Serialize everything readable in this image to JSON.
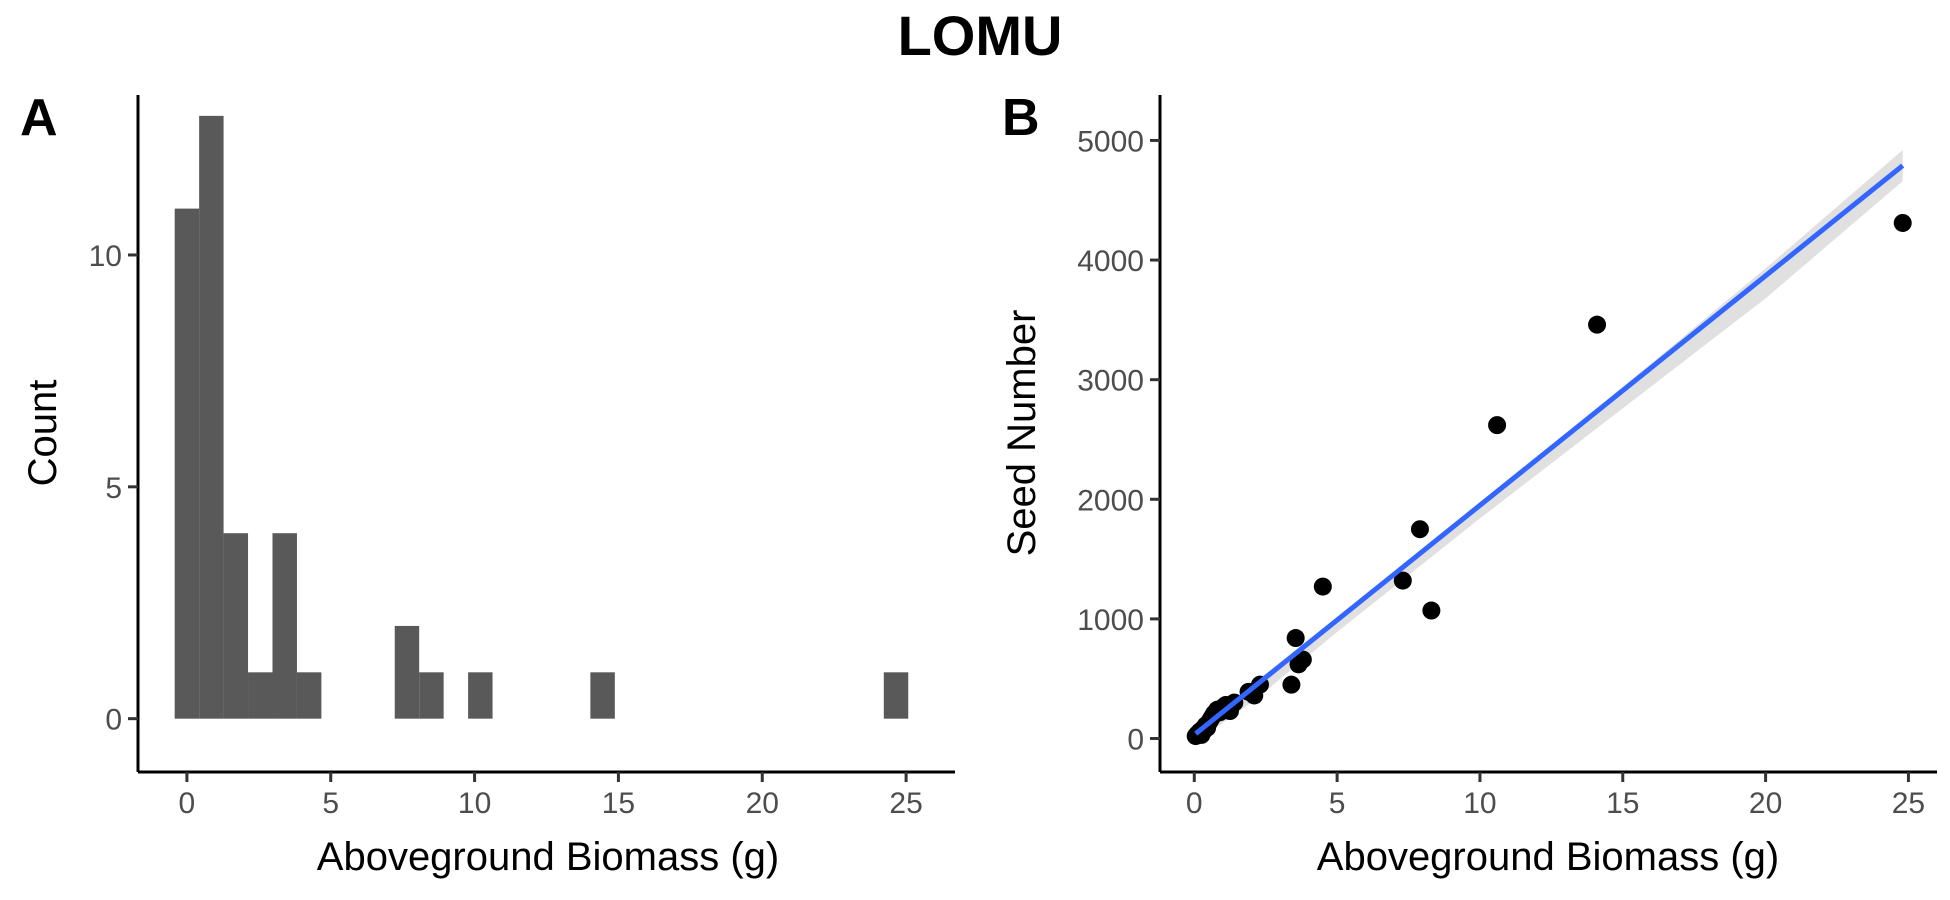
{
  "title": "LOMU",
  "chart_data": [
    {
      "panel": "A",
      "type": "bar",
      "xlabel": "Aboveground Biomass (g)",
      "ylabel": "Count",
      "xlim": [
        -1.7,
        26.7
      ],
      "ylim": [
        -1.15,
        13.45
      ],
      "xticks": [
        0,
        5,
        10,
        15,
        20,
        25
      ],
      "yticks": [
        0,
        5,
        10
      ],
      "bin_width": 0.85,
      "bins": [
        {
          "center": 0.0,
          "count": 11
        },
        {
          "center": 0.85,
          "count": 13
        },
        {
          "center": 1.7,
          "count": 4
        },
        {
          "center": 2.55,
          "count": 1
        },
        {
          "center": 3.4,
          "count": 4
        },
        {
          "center": 4.25,
          "count": 1
        },
        {
          "center": 7.65,
          "count": 2
        },
        {
          "center": 8.5,
          "count": 1
        },
        {
          "center": 10.2,
          "count": 1
        },
        {
          "center": 14.45,
          "count": 1
        },
        {
          "center": 24.65,
          "count": 1
        }
      ]
    },
    {
      "panel": "B",
      "type": "scatter",
      "xlabel": "Aboveground Biomass (g)",
      "ylabel": "Seed Number",
      "xlim": [
        -1.2,
        26.0
      ],
      "ylim": [
        -280,
        5380
      ],
      "xticks": [
        0,
        5,
        10,
        15,
        20,
        25
      ],
      "yticks": [
        0,
        1000,
        2000,
        3000,
        4000,
        5000
      ],
      "points": [
        [
          0.05,
          20
        ],
        [
          0.1,
          35
        ],
        [
          0.15,
          45
        ],
        [
          0.2,
          60
        ],
        [
          0.25,
          30
        ],
        [
          0.3,
          80
        ],
        [
          0.35,
          70
        ],
        [
          0.4,
          110
        ],
        [
          0.45,
          90
        ],
        [
          0.5,
          130
        ],
        [
          0.55,
          150
        ],
        [
          0.6,
          170
        ],
        [
          0.65,
          190
        ],
        [
          0.7,
          210
        ],
        [
          0.8,
          240
        ],
        [
          0.9,
          220
        ],
        [
          1.0,
          260
        ],
        [
          1.1,
          280
        ],
        [
          1.25,
          230
        ],
        [
          1.4,
          300
        ],
        [
          1.9,
          390
        ],
        [
          2.1,
          360
        ],
        [
          2.3,
          450
        ],
        [
          3.4,
          450
        ],
        [
          3.55,
          840
        ],
        [
          3.65,
          620
        ],
        [
          3.8,
          660
        ],
        [
          4.5,
          1270
        ],
        [
          7.3,
          1320
        ],
        [
          7.9,
          1750
        ],
        [
          8.3,
          1070
        ],
        [
          10.6,
          2620
        ],
        [
          14.1,
          3460
        ],
        [
          24.8,
          4310
        ]
      ],
      "fit": {
        "x": [
          0.05,
          24.8
        ],
        "y": [
          40,
          4790
        ]
      },
      "band": {
        "x": [
          0.05,
          2,
          5,
          10,
          15,
          20,
          24.8
        ],
        "upper": [
          110,
          450,
          1010,
          1960,
          2940,
          3930,
          4920
        ],
        "lower": [
          -30,
          300,
          890,
          1840,
          2760,
          3680,
          4660
        ]
      }
    }
  ]
}
